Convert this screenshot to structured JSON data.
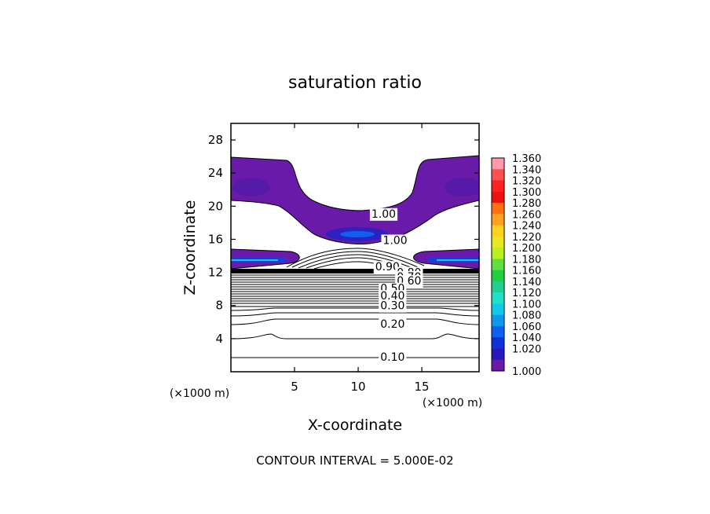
{
  "chart_data": {
    "type": "contour",
    "title": "saturation ratio",
    "xlabel": "X-coordinate",
    "ylabel": "Z-coordinate",
    "x_unit": "(×1000 m)",
    "z_unit": "(×1000 m)",
    "xlim": [
      0,
      19.5
    ],
    "ylim": [
      0,
      30
    ],
    "x_ticks": [
      5,
      10,
      15
    ],
    "y_ticks": [
      4,
      8,
      12,
      16,
      20,
      24,
      28
    ],
    "footer": "CONTOUR INTERVAL = 5.000E-02",
    "colorbar": {
      "levels": [
        "1.360",
        "1.340",
        "1.320",
        "1.300",
        "1.280",
        "1.260",
        "1.240",
        "1.220",
        "1.200",
        "1.180",
        "1.160",
        "1.140",
        "1.120",
        "1.100",
        "1.080",
        "1.060",
        "1.040",
        "1.020",
        "1.000"
      ],
      "colors": [
        "#ff9aa8",
        "#ff5050",
        "#ff2020",
        "#ee1010",
        "#ff7010",
        "#ffa020",
        "#ffd020",
        "#e8e820",
        "#b8f020",
        "#60e040",
        "#20d040",
        "#20d090",
        "#20e0c8",
        "#10c8e8",
        "#1098f0",
        "#1060f0",
        "#1030d8",
        "#2818b8",
        "#6a1aa8"
      ]
    },
    "contour_labels": [
      {
        "text": "1.00",
        "x": 12.0,
        "z": 19.1
      },
      {
        "text": "1.00",
        "x": 12.9,
        "z": 15.9
      },
      {
        "text": "0.90",
        "x": 12.3,
        "z": 12.7
      },
      {
        "text": "0.80",
        "x": 14.0,
        "z": 12.0
      },
      {
        "text": "0.70",
        "x": 14.0,
        "z": 11.5
      },
      {
        "text": "0.60",
        "x": 14.0,
        "z": 11.0
      },
      {
        "text": "0.50",
        "x": 12.7,
        "z": 10.1
      },
      {
        "text": "0.40",
        "x": 12.7,
        "z": 9.2
      },
      {
        "text": "0.30",
        "x": 12.7,
        "z": 8.0
      },
      {
        "text": "0.20",
        "x": 12.7,
        "z": 5.8
      },
      {
        "text": "0.10",
        "x": 12.7,
        "z": 1.8
      }
    ]
  }
}
